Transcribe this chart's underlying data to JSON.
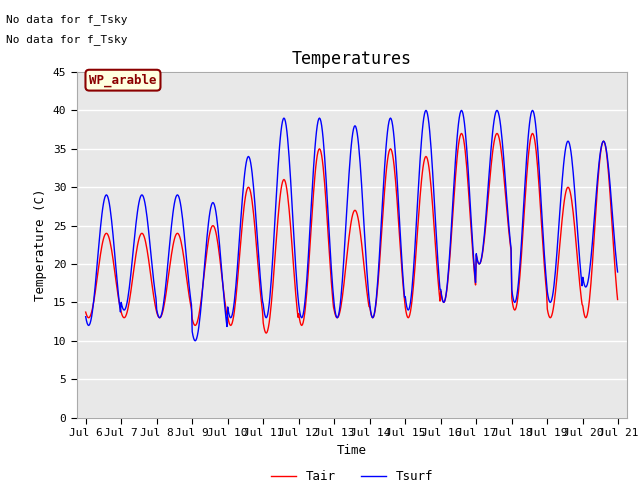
{
  "title": "Temperatures",
  "xlabel": "Time",
  "ylabel": "Temperature (C)",
  "text_lines": [
    "No data for f_Tsky",
    "No data for f_Tsky"
  ],
  "annotation_text": "WP_arable",
  "legend_labels": [
    "Tair",
    "Tsurf"
  ],
  "line_colors": [
    "red",
    "blue"
  ],
  "ylim": [
    0,
    45
  ],
  "xlim_days": [
    5.75,
    21.25
  ],
  "x_tick_days": [
    6,
    7,
    8,
    9,
    10,
    11,
    12,
    13,
    14,
    15,
    16,
    17,
    18,
    19,
    20,
    21
  ],
  "x_tick_labels": [
    "Jul 6",
    "Jul 7",
    "Jul 8",
    "Jul 9",
    "Jul 10",
    "Jul 11",
    "Jul 12",
    "Jul 13",
    "Jul 14",
    "Jul 15",
    "Jul 16",
    "Jul 17",
    "Jul 18",
    "Jul 19",
    "Jul 20",
    "Jul 21"
  ],
  "yticks": [
    0,
    5,
    10,
    15,
    20,
    25,
    30,
    35,
    40,
    45
  ],
  "plot_bg": "#e8e8e8",
  "grid_color": "white",
  "font_family": "monospace",
  "title_fontsize": 12,
  "label_fontsize": 9,
  "tick_fontsize": 8
}
